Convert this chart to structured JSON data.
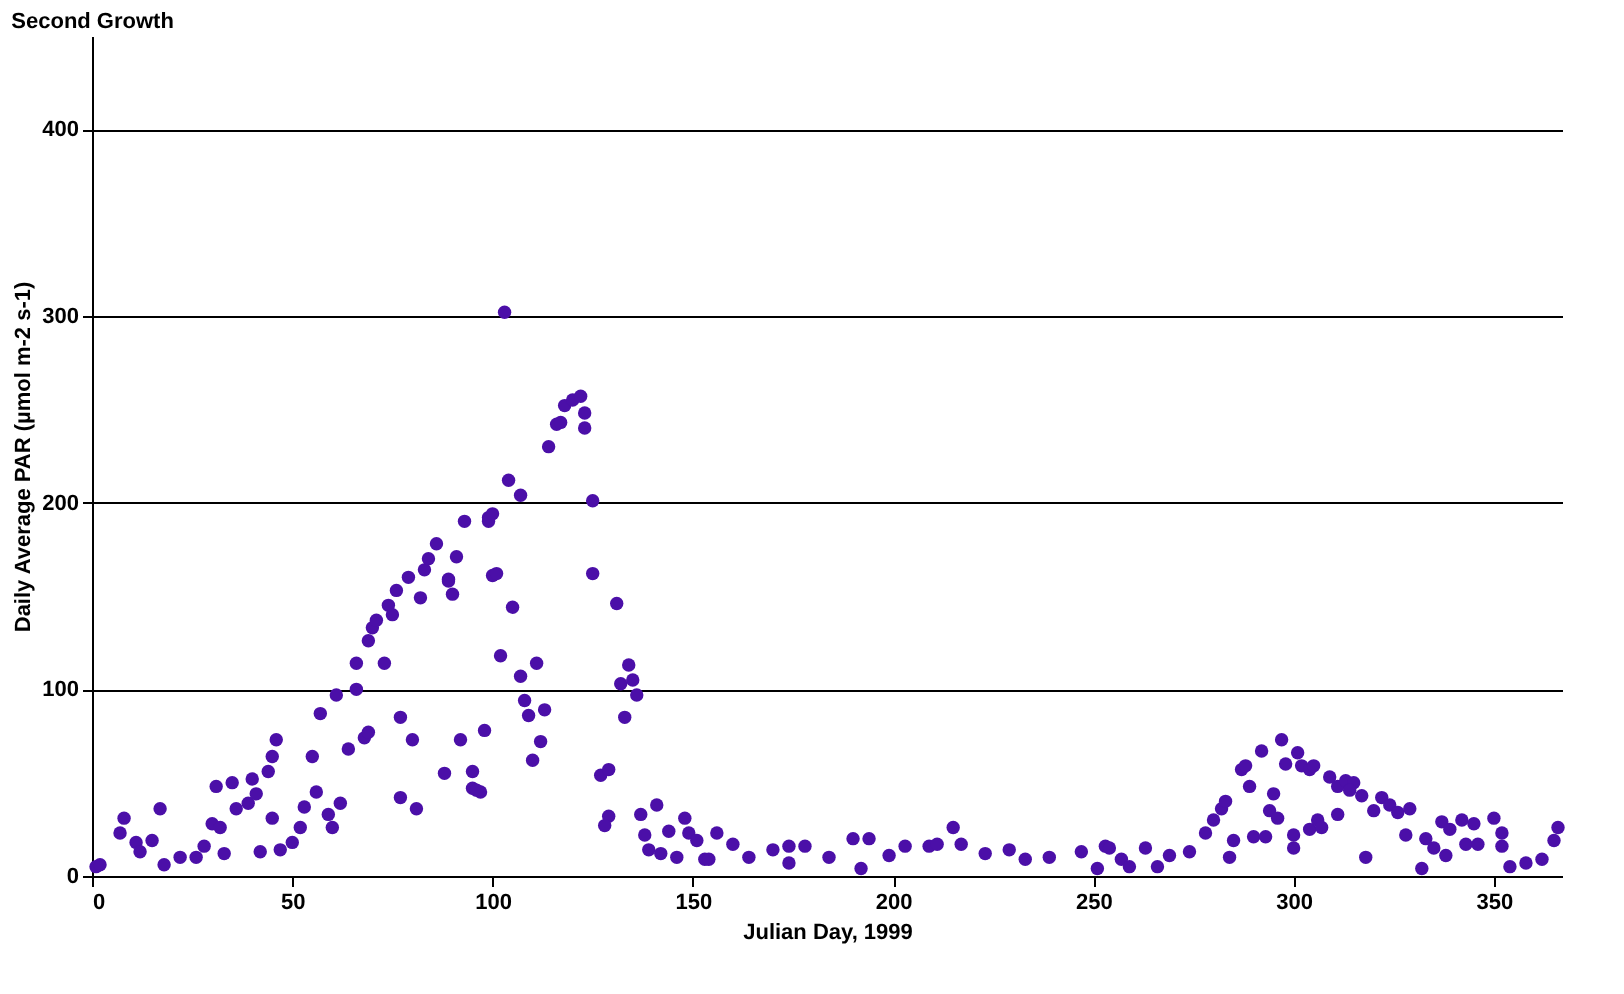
{
  "chart_data": {
    "type": "scatter",
    "title": "Second Growth",
    "xlabel": "Julian Day, 1999",
    "ylabel": "Daily Average PAR (µmol m-2 s-1)",
    "xlim": [
      0,
      367
    ],
    "ylim": [
      0,
      450
    ],
    "xticks": [
      0,
      50,
      100,
      150,
      200,
      250,
      300,
      350
    ],
    "yticks": [
      0,
      100,
      200,
      300,
      400
    ],
    "grid": "y",
    "marker": "circle",
    "series": [
      {
        "color": "#4b0fa8",
        "x": [
          1,
          2,
          8,
          7,
          11,
          12,
          15,
          17,
          18,
          22,
          26,
          28,
          31,
          30,
          32,
          33,
          35,
          36,
          39,
          40,
          41,
          44,
          45,
          45,
          46,
          42,
          47,
          50,
          52,
          53,
          55,
          56,
          59,
          60,
          62,
          57,
          61,
          64,
          66,
          68,
          69,
          66,
          69,
          70,
          71,
          73,
          74,
          75,
          76,
          77,
          79,
          80,
          77,
          81,
          82,
          83,
          84,
          86,
          88,
          89,
          90,
          91,
          92,
          93,
          95,
          95,
          97,
          98,
          99,
          100,
          103,
          96,
          89,
          99,
          100,
          101,
          102,
          105,
          104,
          107,
          107,
          108,
          109,
          111,
          113,
          112,
          110,
          114,
          116,
          117,
          118,
          120,
          122,
          123,
          123,
          125,
          125,
          131,
          134,
          132,
          135,
          136,
          133,
          127,
          129,
          129,
          128,
          137,
          141,
          138,
          139,
          144,
          142,
          146,
          148,
          149,
          151,
          153,
          156,
          154,
          160,
          164,
          170,
          174,
          178,
          174,
          184,
          190,
          194,
          192,
          199,
          203,
          209,
          211,
          215,
          217,
          223,
          229,
          233,
          239,
          247,
          253,
          251,
          257,
          254,
          259,
          263,
          266,
          269,
          274,
          278,
          280,
          282,
          283,
          284,
          285,
          287,
          288,
          289,
          290,
          293,
          292,
          294,
          295,
          296,
          297,
          298,
          300,
          300,
          301,
          302,
          304,
          305,
          304,
          306,
          307,
          309,
          311,
          311,
          313,
          315,
          314,
          317,
          318,
          320,
          322,
          324,
          326,
          329,
          328,
          332,
          333,
          335,
          337,
          338,
          339,
          342,
          343,
          345,
          346,
          350,
          352,
          352,
          354,
          358,
          362,
          365,
          366
        ],
        "values": [
          5,
          6,
          31,
          23,
          18,
          13,
          19,
          36,
          6,
          10,
          10,
          16,
          48,
          28,
          26,
          12,
          50,
          36,
          39,
          52,
          44,
          56,
          31,
          64,
          73,
          13,
          14,
          18,
          26,
          37,
          64,
          45,
          33,
          26,
          39,
          87,
          97,
          68,
          100,
          74,
          77,
          114,
          126,
          133,
          137,
          114,
          145,
          140,
          153,
          85,
          160,
          73,
          42,
          36,
          149,
          164,
          170,
          178,
          55,
          159,
          151,
          171,
          73,
          190,
          56,
          47,
          45,
          78,
          192,
          161,
          302,
          46,
          158,
          190,
          194,
          162,
          118,
          144,
          212,
          204,
          107,
          94,
          86,
          114,
          89,
          72,
          62,
          230,
          242,
          243,
          252,
          255,
          257,
          248,
          240,
          201,
          162,
          146,
          113,
          103,
          105,
          97,
          85,
          54,
          57,
          32,
          27,
          33,
          38,
          22,
          14,
          24,
          12,
          10,
          31,
          23,
          19,
          9,
          23,
          9,
          17,
          10,
          14,
          16,
          16,
          7,
          10,
          20,
          20,
          4,
          11,
          16,
          16,
          17,
          26,
          17,
          12,
          14,
          9,
          10,
          13,
          16,
          4,
          9,
          15,
          5,
          15,
          5,
          11,
          13,
          23,
          30,
          36,
          40,
          10,
          19,
          57,
          59,
          48,
          21,
          21,
          67,
          35,
          44,
          31,
          73,
          60,
          22,
          15,
          66,
          59,
          57,
          59,
          25,
          30,
          26,
          53,
          33,
          48,
          51,
          50,
          46,
          43,
          10,
          35,
          42,
          38,
          34,
          36,
          22,
          4,
          20,
          15,
          29,
          11,
          25,
          30,
          17,
          28,
          17,
          31,
          16,
          23,
          5,
          7,
          9,
          19,
          26
        ]
      }
    ]
  }
}
